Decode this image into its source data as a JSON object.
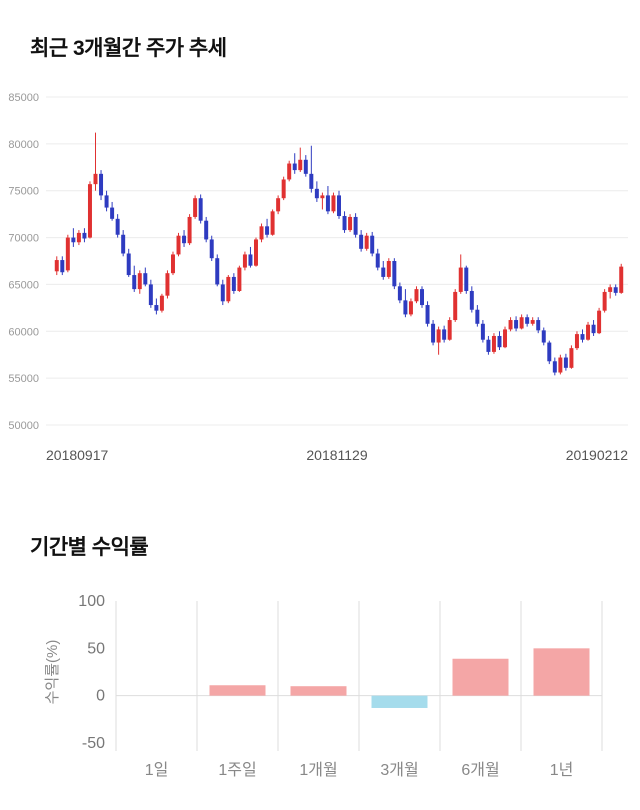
{
  "page": {
    "background": "#ffffff"
  },
  "chart_data": [
    {
      "type": "candlestick",
      "title": "최근 3개월간 주가 추세",
      "ylim": [
        50000,
        85000
      ],
      "y_ticks": [
        85000,
        80000,
        75000,
        70000,
        65000,
        60000,
        55000,
        50000
      ],
      "x_labels": [
        "20180917",
        "20181129",
        "20190212"
      ],
      "up_color": "#e03131",
      "down_color": "#2e3bc0",
      "grid_color": "#ececec",
      "tick_color": "#999999",
      "x_label_color": "#555555",
      "candles": [
        [
          66400,
          68000,
          66000,
          67600
        ],
        [
          67600,
          68000,
          66000,
          66300
        ],
        [
          66500,
          70300,
          66300,
          70000
        ],
        [
          70000,
          71000,
          69000,
          69500
        ],
        [
          69500,
          70800,
          69200,
          70500
        ],
        [
          70500,
          71000,
          69500,
          69900
        ],
        [
          70000,
          76000,
          69900,
          75700
        ],
        [
          75700,
          81200,
          75000,
          76800
        ],
        [
          76800,
          77200,
          74000,
          74500
        ],
        [
          74500,
          75000,
          72800,
          73200
        ],
        [
          73200,
          73800,
          71800,
          72000
        ],
        [
          72000,
          72500,
          70000,
          70300
        ],
        [
          70300,
          70800,
          68000,
          68300
        ],
        [
          68300,
          68800,
          65800,
          66000
        ],
        [
          66000,
          67000,
          64200,
          64500
        ],
        [
          64500,
          66500,
          64000,
          66200
        ],
        [
          66200,
          66800,
          64800,
          65000
        ],
        [
          65000,
          65500,
          62500,
          62800
        ],
        [
          62800,
          63500,
          61800,
          62200
        ],
        [
          62200,
          64000,
          62000,
          63800
        ],
        [
          63800,
          66500,
          63500,
          66200
        ],
        [
          66200,
          68500,
          66000,
          68200
        ],
        [
          68200,
          70500,
          68000,
          70200
        ],
        [
          70200,
          70800,
          69000,
          69400
        ],
        [
          69400,
          72500,
          69200,
          72200
        ],
        [
          72200,
          74500,
          72000,
          74200
        ],
        [
          74200,
          74600,
          71500,
          71800
        ],
        [
          71800,
          72200,
          69500,
          69800
        ],
        [
          69800,
          70200,
          67500,
          67800
        ],
        [
          67800,
          68200,
          64800,
          65000
        ],
        [
          65000,
          65500,
          62800,
          63200
        ],
        [
          63200,
          66000,
          63000,
          65800
        ],
        [
          65800,
          66200,
          64000,
          64300
        ],
        [
          64300,
          67000,
          64200,
          66800
        ],
        [
          66800,
          68500,
          66500,
          68200
        ],
        [
          68200,
          69000,
          66800,
          67000
        ],
        [
          67000,
          70000,
          66900,
          69800
        ],
        [
          69800,
          71500,
          69500,
          71200
        ],
        [
          71200,
          72000,
          70000,
          70300
        ],
        [
          70300,
          73000,
          70200,
          72800
        ],
        [
          72800,
          74500,
          72500,
          74200
        ],
        [
          74200,
          76500,
          74000,
          76200
        ],
        [
          76200,
          78200,
          76000,
          77900
        ],
        [
          77900,
          79000,
          76800,
          77200
        ],
        [
          77200,
          79600,
          77000,
          78300
        ],
        [
          78300,
          78800,
          76500,
          76800
        ],
        [
          76800,
          79800,
          74800,
          75200
        ],
        [
          75200,
          76000,
          73800,
          74200
        ],
        [
          74200,
          74800,
          73000,
          74500
        ],
        [
          74500,
          75500,
          72500,
          72800
        ],
        [
          72800,
          74800,
          72600,
          74500
        ],
        [
          74500,
          75000,
          72000,
          72300
        ],
        [
          72300,
          72800,
          70500,
          70800
        ],
        [
          70800,
          72500,
          70600,
          72200
        ],
        [
          72200,
          72600,
          70000,
          70300
        ],
        [
          70300,
          70800,
          68500,
          68800
        ],
        [
          68800,
          70500,
          68600,
          70200
        ],
        [
          70200,
          70600,
          68000,
          68300
        ],
        [
          68300,
          68800,
          66500,
          66800
        ],
        [
          66800,
          67500,
          65500,
          65800
        ],
        [
          65800,
          67800,
          65600,
          67500
        ],
        [
          67500,
          67800,
          64500,
          64800
        ],
        [
          64800,
          65200,
          63000,
          63300
        ],
        [
          63300,
          64500,
          61500,
          61800
        ],
        [
          61800,
          63500,
          61600,
          63200
        ],
        [
          63200,
          64800,
          63000,
          64500
        ],
        [
          64500,
          64800,
          62500,
          62800
        ],
        [
          62800,
          63200,
          60500,
          60800
        ],
        [
          60800,
          61200,
          58500,
          58800
        ],
        [
          58800,
          60500,
          57500,
          60200
        ],
        [
          60200,
          60600,
          58800,
          59100
        ],
        [
          59100,
          61500,
          59000,
          61200
        ],
        [
          61200,
          64500,
          61000,
          64200
        ],
        [
          64200,
          68200,
          64000,
          66800
        ],
        [
          66800,
          67000,
          64000,
          64300
        ],
        [
          64300,
          64800,
          62000,
          62300
        ],
        [
          62300,
          62800,
          60500,
          60800
        ],
        [
          60800,
          61200,
          58800,
          59100
        ],
        [
          59100,
          59500,
          57500,
          57800
        ],
        [
          57800,
          59800,
          57600,
          59500
        ],
        [
          59500,
          60000,
          58000,
          58300
        ],
        [
          58300,
          60500,
          58200,
          60200
        ],
        [
          60200,
          61500,
          60000,
          61200
        ],
        [
          61200,
          61600,
          60000,
          60300
        ],
        [
          60300,
          61800,
          60200,
          61500
        ],
        [
          61500,
          61800,
          60500,
          60800
        ],
        [
          60800,
          61500,
          60600,
          61200
        ],
        [
          61200,
          61500,
          59800,
          60100
        ],
        [
          60100,
          60400,
          58500,
          58800
        ],
        [
          58800,
          59000,
          56500,
          56800
        ],
        [
          56800,
          57200,
          55300,
          55600
        ],
        [
          55600,
          57500,
          55400,
          57200
        ],
        [
          57200,
          57600,
          55800,
          56100
        ],
        [
          56100,
          58500,
          56000,
          58200
        ],
        [
          58200,
          60000,
          58000,
          59700
        ],
        [
          59700,
          60200,
          58800,
          59100
        ],
        [
          59100,
          61000,
          59000,
          60700
        ],
        [
          60700,
          61200,
          59500,
          59800
        ],
        [
          59800,
          62500,
          59700,
          62200
        ],
        [
          62200,
          64500,
          62000,
          64200
        ],
        [
          64200,
          65000,
          63500,
          64700
        ],
        [
          64700,
          65000,
          63800,
          64100
        ],
        [
          64100,
          67200,
          64000,
          66900
        ]
      ]
    },
    {
      "type": "bar",
      "title": "기간별 수익률",
      "ylabel": "수익률(%)",
      "categories": [
        "1일",
        "1주일",
        "1개월",
        "3개월",
        "6개월",
        "1년"
      ],
      "values": [
        0,
        11,
        10,
        -13,
        39,
        50
      ],
      "ylim": [
        -50,
        100
      ],
      "y_ticks": [
        100,
        50,
        0,
        -50
      ],
      "positive_color": "#f4a6a6",
      "negative_color": "#a5dcec",
      "grid_color": "#dddddd",
      "tick_color": "#777777",
      "label_color": "#888888"
    }
  ]
}
